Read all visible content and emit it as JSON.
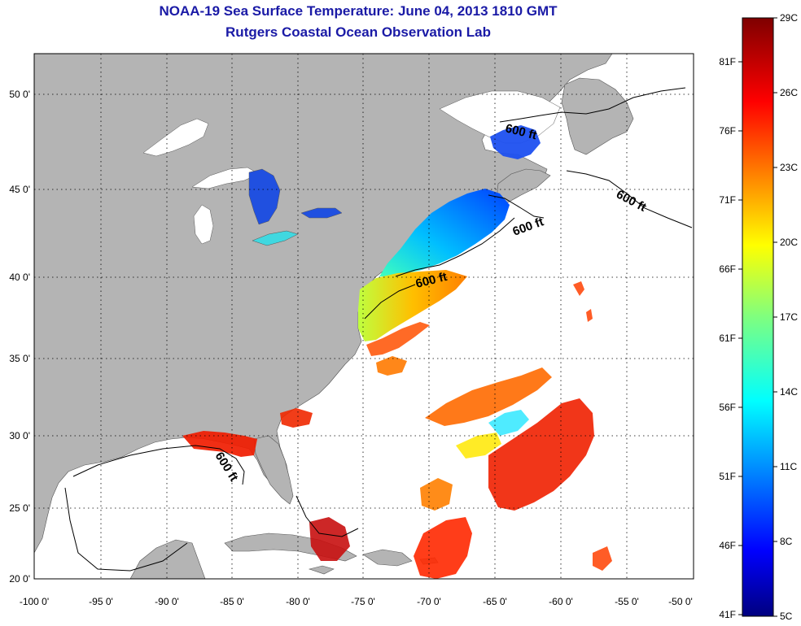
{
  "title": {
    "line1": "NOAA-19 Sea Surface Temperature:  June 04, 2013 1810 GMT",
    "line2": "Rutgers Coastal Ocean Observation Lab"
  },
  "map": {
    "lon_ticks": [
      "-100 0'",
      "-95 0'",
      "-90 0'",
      "-85 0'",
      "-80 0'",
      "-75 0'",
      "-70 0'",
      "-65 0'",
      "-60 0'",
      "-55 0'",
      "-50 0'"
    ],
    "lat_ticks": [
      "50 0'",
      "45 0'",
      "40 0'",
      "35 0'",
      "30 0'",
      "25 0'",
      "20 0'"
    ],
    "contour_labels": [
      "600 ft",
      "600 ft",
      "600 ft",
      "600 ft",
      "600 ft"
    ],
    "land_color": "#b4b4b4",
    "water_color": "#ffffff"
  },
  "colorbar": {
    "celsius": [
      "29C",
      "26C",
      "23C",
      "20C",
      "17C",
      "14C",
      "11C",
      "8C",
      "5C"
    ],
    "fahrenheit": [
      "81F",
      "76F",
      "71F",
      "66F",
      "61F",
      "56F",
      "51F",
      "46F",
      "41F"
    ],
    "colors": [
      "#00007f",
      "#0000ff",
      "#007fff",
      "#00ffff",
      "#7fff7f",
      "#ffff00",
      "#ff7f00",
      "#ff0000",
      "#7f0000"
    ]
  }
}
